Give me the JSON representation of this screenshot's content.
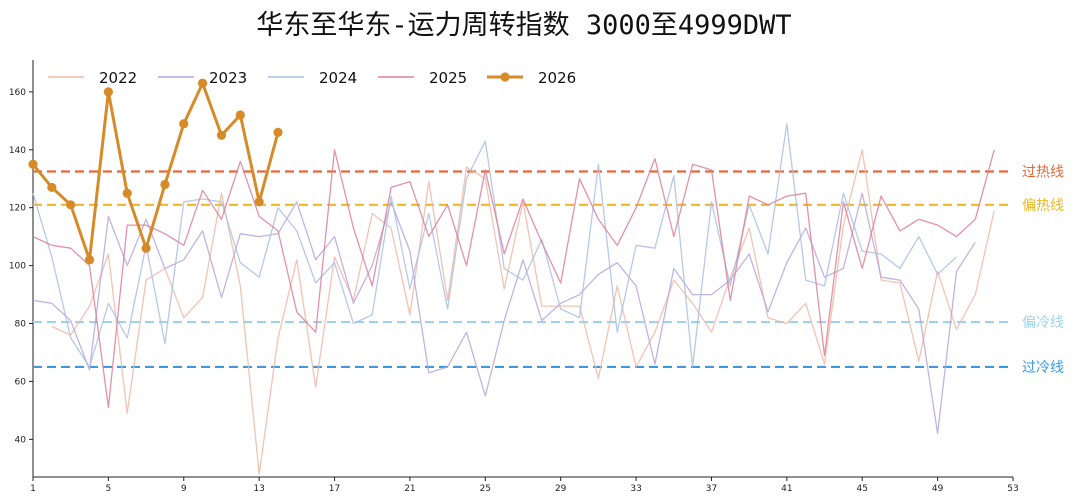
{
  "chart_data": {
    "type": "line",
    "title": "华东至华东-运力周转指数 3000至4999DWT",
    "xlabel": "",
    "ylabel": "",
    "xlim": [
      1,
      53
    ],
    "ylim": [
      27,
      171
    ],
    "x_ticks": [
      1,
      5,
      9,
      13,
      17,
      21,
      25,
      29,
      33,
      37,
      41,
      45,
      49,
      53
    ],
    "y_ticks": [
      40,
      60,
      80,
      100,
      120,
      140,
      160
    ],
    "legend_position": "top-left",
    "series": [
      {
        "name": "2022",
        "color": "#f0b8a6",
        "highlight": false,
        "markers": false,
        "values": [
          null,
          79,
          76,
          86,
          104,
          49,
          95,
          99,
          82,
          89,
          125,
          93,
          28,
          75,
          102,
          58,
          103,
          88,
          118,
          113,
          83,
          129,
          88,
          134,
          130,
          92,
          122,
          86,
          86,
          86,
          61,
          93,
          65,
          77,
          95,
          87,
          77,
          96,
          113,
          82,
          80,
          87,
          66,
          114,
          140,
          95,
          94,
          67,
          98,
          78,
          90,
          119
        ]
      },
      {
        "name": "2023",
        "color": "#b7a6dc",
        "highlight": false,
        "markers": false,
        "values": [
          88,
          87,
          81,
          64,
          117,
          100,
          116,
          99,
          102,
          112,
          89,
          111,
          110,
          111,
          122,
          102,
          110,
          87,
          100,
          122,
          105,
          63,
          65,
          77,
          55,
          81,
          102,
          81,
          87,
          90,
          97,
          101,
          93,
          66,
          99,
          90,
          90,
          95,
          104,
          84,
          101,
          113,
          96,
          99,
          125,
          96,
          95,
          85,
          42,
          98,
          108
        ]
      },
      {
        "name": "2024",
        "color": "#a9c0e4",
        "highlight": false,
        "markers": false,
        "values": [
          125,
          103,
          75,
          65,
          87,
          75,
          107,
          73,
          122,
          123,
          122,
          101,
          96,
          120,
          112,
          94,
          101,
          80,
          83,
          124,
          92,
          118,
          85,
          130,
          143,
          99,
          95,
          109,
          85,
          82,
          135,
          77,
          107,
          106,
          131,
          65,
          122,
          93,
          121,
          104,
          149,
          95,
          93,
          125,
          105,
          104,
          99,
          110,
          97,
          103
        ]
      },
      {
        "name": "2025",
        "color": "#de7f98",
        "highlight": false,
        "markers": false,
        "values": [
          110,
          107,
          106,
          100,
          51,
          114,
          114,
          111,
          107,
          126,
          116,
          136,
          117,
          112,
          84,
          77,
          140,
          113,
          93,
          127,
          129,
          110,
          121,
          100,
          133,
          104,
          123,
          108,
          94,
          130,
          116,
          107,
          120,
          137,
          110,
          135,
          133,
          88,
          124,
          121,
          124,
          125,
          69,
          122,
          99,
          124,
          112,
          116,
          114,
          110,
          116,
          140
        ]
      },
      {
        "name": "2026",
        "color": "#d68a28",
        "highlight": true,
        "markers": true,
        "values": [
          135,
          127,
          121,
          102,
          160,
          125,
          106,
          128,
          149,
          163,
          145,
          152,
          122,
          146
        ]
      }
    ],
    "reference_lines": [
      {
        "label": "过热线",
        "value": 132.5,
        "color": "#e8673a"
      },
      {
        "label": "偏热线",
        "value": 121,
        "color": "#f2b624"
      },
      {
        "label": "偏冷线",
        "value": 80.5,
        "color": "#9fd2ef"
      },
      {
        "label": "过冷线",
        "value": 65,
        "color": "#3b9ae0"
      }
    ]
  }
}
